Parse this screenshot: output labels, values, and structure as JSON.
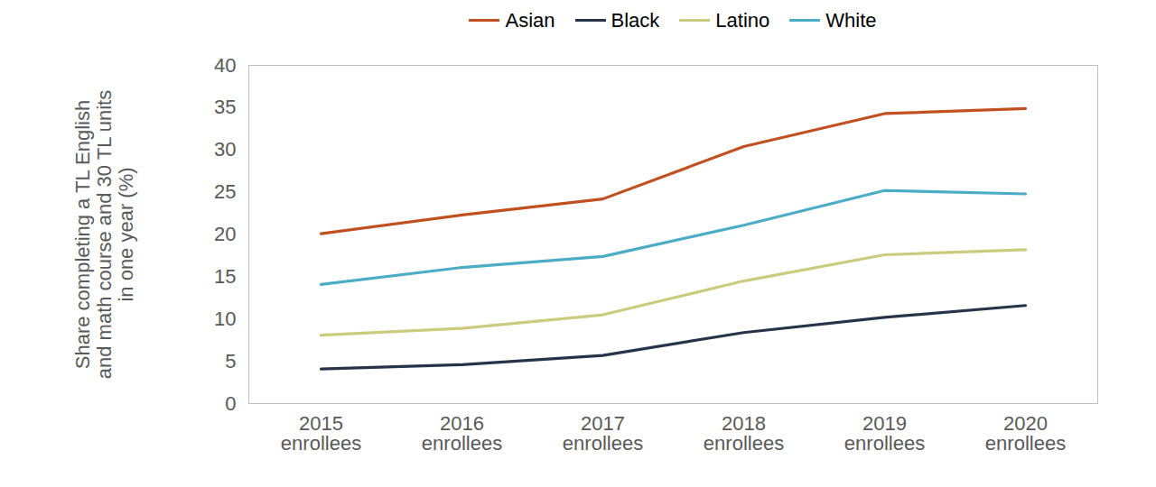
{
  "chart_data": {
    "type": "line",
    "ylabel": "Share completing a TL English and math course and 30 TL units in one year (%)",
    "categories": [
      "2015 enrollees",
      "2016 enrollees",
      "2017 enrollees",
      "2018 enrollees",
      "2019 enrollees",
      "2020 enrollees"
    ],
    "series": [
      {
        "name": "Asian",
        "color": "#c0501f",
        "values": [
          20.1,
          22.3,
          24.2,
          30.4,
          34.3,
          34.9
        ]
      },
      {
        "name": "Black",
        "color": "#253547",
        "values": [
          4.1,
          4.6,
          5.7,
          8.4,
          10.2,
          11.6
        ]
      },
      {
        "name": "Latino",
        "color": "#cbcb7e",
        "values": [
          8.1,
          8.9,
          10.5,
          14.5,
          17.6,
          18.2
        ]
      },
      {
        "name": "White",
        "color": "#4bacc6",
        "values": [
          14.1,
          16.1,
          17.4,
          21.1,
          25.2,
          24.8
        ]
      }
    ],
    "ylim": [
      0,
      40
    ],
    "yticks": [
      0,
      5,
      10,
      15,
      20,
      25,
      30,
      35,
      40
    ],
    "grid": false,
    "legend": "top"
  }
}
